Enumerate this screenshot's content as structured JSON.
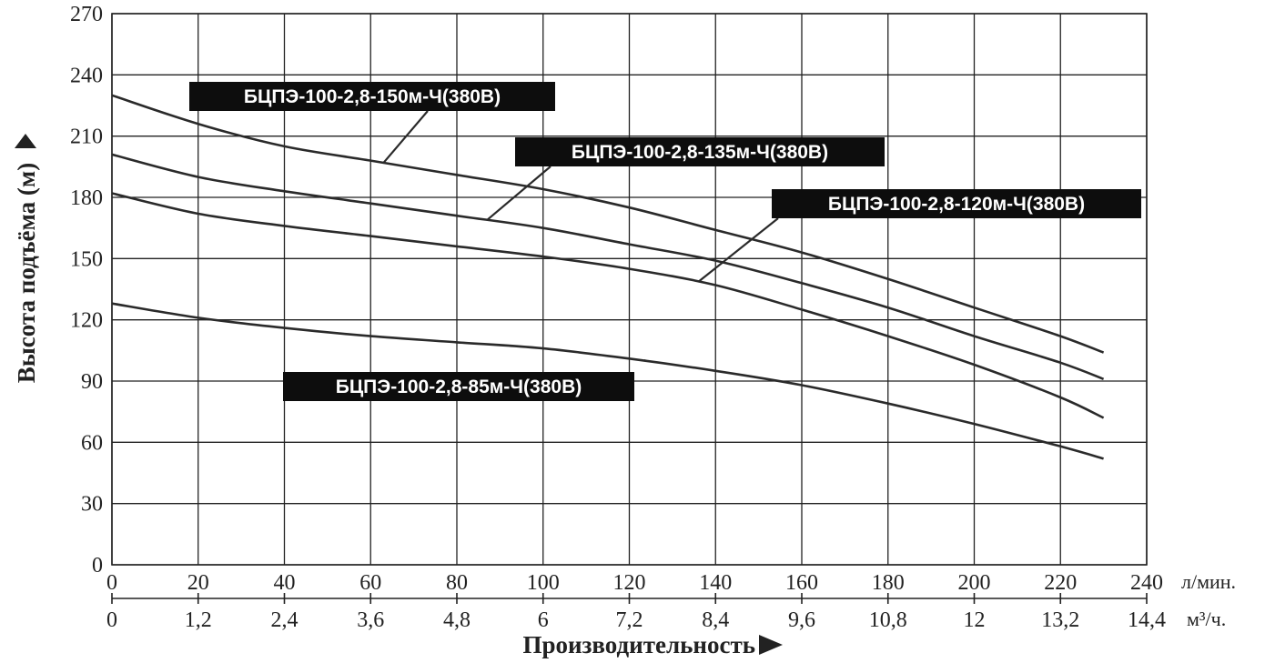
{
  "chart_data": {
    "type": "line",
    "xlabel": "Производительность",
    "ylabel": "Высота подъёма (м)",
    "x_unit": "л/мин.",
    "x2_unit": "м³/ч.",
    "xlim": [
      0,
      240
    ],
    "ylim": [
      0,
      270
    ],
    "x_ticks": [
      0,
      20,
      40,
      60,
      80,
      100,
      120,
      140,
      160,
      180,
      200,
      220,
      240
    ],
    "x2_ticks": [
      "0",
      "1,2",
      "2,4",
      "3,6",
      "4,8",
      "6",
      "7,2",
      "8,4",
      "9,6",
      "10,8",
      "12",
      "13,2",
      "14,4"
    ],
    "y_ticks": [
      0,
      30,
      60,
      90,
      120,
      150,
      180,
      210,
      240,
      270
    ],
    "grid": true,
    "series": [
      {
        "name": "БЦПЭ-100-2,8-150м-Ч(380В)",
        "x": [
          0,
          20,
          40,
          60,
          80,
          100,
          120,
          140,
          160,
          180,
          200,
          220,
          230
        ],
        "y": [
          230,
          216,
          205,
          198,
          191,
          184,
          175,
          164,
          153,
          140,
          126,
          112,
          104
        ]
      },
      {
        "name": "БЦПЭ-100-2,8-135м-Ч(380В)",
        "x": [
          0,
          20,
          40,
          60,
          80,
          100,
          120,
          140,
          160,
          180,
          200,
          220,
          230
        ],
        "y": [
          201,
          190,
          183,
          177,
          171,
          165,
          157,
          149,
          138,
          126,
          112,
          99,
          91
        ]
      },
      {
        "name": "БЦПЭ-100-2,8-120м-Ч(380В)",
        "x": [
          0,
          20,
          40,
          60,
          80,
          100,
          120,
          140,
          160,
          180,
          200,
          220,
          230
        ],
        "y": [
          182,
          172,
          166,
          161,
          156,
          151,
          145,
          137,
          125,
          112,
          98,
          82,
          72
        ]
      },
      {
        "name": "БЦПЭ-100-2,8-85м-Ч(380В)",
        "x": [
          0,
          20,
          40,
          60,
          80,
          100,
          120,
          140,
          160,
          180,
          200,
          220,
          230
        ],
        "y": [
          128,
          121,
          116,
          112,
          109,
          106,
          101,
          95,
          88,
          79,
          69,
          58,
          52
        ]
      }
    ]
  }
}
